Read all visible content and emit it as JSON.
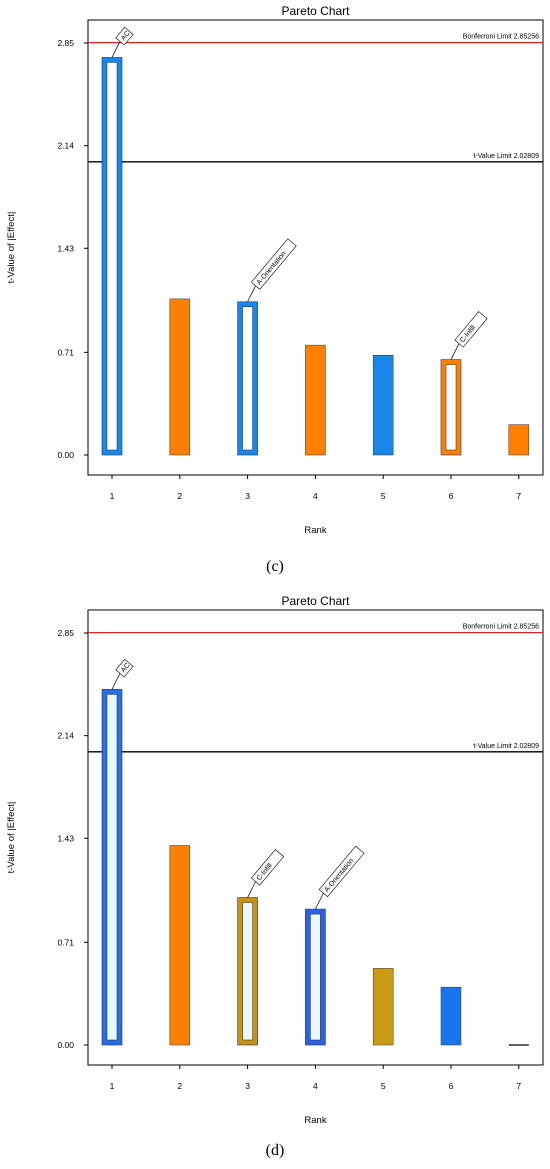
{
  "captions": [
    "(c)",
    "(d)"
  ],
  "chart_data": [
    {
      "type": "bar",
      "title": "Pareto Chart",
      "xlabel": "Rank",
      "ylabel": "t-Value of |Effect|",
      "yticks": [
        "0.00",
        "0.71",
        "1.43",
        "2.14",
        "2.85"
      ],
      "ylim": [
        0,
        3.0
      ],
      "categories": [
        "1",
        "2",
        "3",
        "4",
        "5",
        "6",
        "7"
      ],
      "values": [
        2.75,
        1.08,
        1.06,
        0.76,
        0.69,
        0.66,
        0.21
      ],
      "bar_colors": [
        "#1a86ea",
        "#ff8000",
        "#1a86ea",
        "#ff8000",
        "#1a86ea",
        "#ff8000",
        "#ff8000"
      ],
      "hollow": [
        true,
        false,
        true,
        false,
        false,
        true,
        false
      ],
      "bar_labels": [
        "AC",
        "",
        "A-Orientation",
        "",
        "",
        "C-Infill",
        ""
      ],
      "limits": [
        {
          "label": "Bonferroni Limit 2.85256",
          "value": 2.85256,
          "color": "#e02020"
        },
        {
          "label": "t-Value Limit 2.02809",
          "value": 2.02809,
          "color": "#000000"
        }
      ]
    },
    {
      "type": "bar",
      "title": "Pareto Chart",
      "xlabel": "Rank",
      "ylabel": "t-Value of |Effect|",
      "yticks": [
        "0.00",
        "0.71",
        "1.43",
        "2.14",
        "2.85"
      ],
      "ylim": [
        0,
        3.0
      ],
      "categories": [
        "1",
        "2",
        "3",
        "4",
        "5",
        "6",
        "7"
      ],
      "values": [
        2.46,
        1.38,
        1.02,
        0.94,
        0.53,
        0.4,
        0.0
      ],
      "bar_colors": [
        "#2a6fe0",
        "#ff8000",
        "#cc8f10",
        "#3060e0",
        "#cc9a10",
        "#1a74f0",
        "#000000"
      ],
      "hollow": [
        true,
        false,
        true,
        true,
        false,
        false,
        false
      ],
      "bar_labels": [
        "AC",
        "",
        "C-Infill",
        "A-Orientation",
        "",
        "",
        ""
      ],
      "limits": [
        {
          "label": "Bonferroni Limit 2.85256",
          "value": 2.85256,
          "color": "#e02020"
        },
        {
          "label": "t-Value Limit 2.02809",
          "value": 2.02809,
          "color": "#000000"
        }
      ]
    }
  ]
}
